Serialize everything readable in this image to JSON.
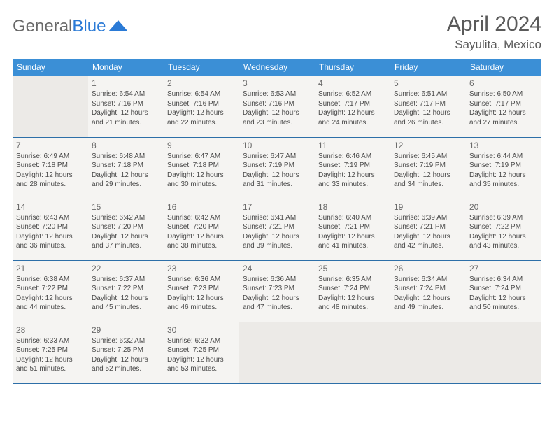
{
  "brand": {
    "part1": "General",
    "part2": "Blue"
  },
  "title": "April 2024",
  "location": "Sayulita, Mexico",
  "colors": {
    "header_bg": "#3b8fd6",
    "header_fg": "#ffffff",
    "cell_bg": "#f5f4f2",
    "empty_bg": "#eceae7",
    "rule": "#2d6fa8",
    "text": "#4a4a4a",
    "logo_gray": "#6a6a6a",
    "logo_blue": "#2a7ad6"
  },
  "day_headers": [
    "Sunday",
    "Monday",
    "Tuesday",
    "Wednesday",
    "Thursday",
    "Friday",
    "Saturday"
  ],
  "start_offset": 1,
  "days": [
    {
      "n": 1,
      "sr": "6:54 AM",
      "ss": "7:16 PM",
      "dl": "12 hours and 21 minutes."
    },
    {
      "n": 2,
      "sr": "6:54 AM",
      "ss": "7:16 PM",
      "dl": "12 hours and 22 minutes."
    },
    {
      "n": 3,
      "sr": "6:53 AM",
      "ss": "7:16 PM",
      "dl": "12 hours and 23 minutes."
    },
    {
      "n": 4,
      "sr": "6:52 AM",
      "ss": "7:17 PM",
      "dl": "12 hours and 24 minutes."
    },
    {
      "n": 5,
      "sr": "6:51 AM",
      "ss": "7:17 PM",
      "dl": "12 hours and 26 minutes."
    },
    {
      "n": 6,
      "sr": "6:50 AM",
      "ss": "7:17 PM",
      "dl": "12 hours and 27 minutes."
    },
    {
      "n": 7,
      "sr": "6:49 AM",
      "ss": "7:18 PM",
      "dl": "12 hours and 28 minutes."
    },
    {
      "n": 8,
      "sr": "6:48 AM",
      "ss": "7:18 PM",
      "dl": "12 hours and 29 minutes."
    },
    {
      "n": 9,
      "sr": "6:47 AM",
      "ss": "7:18 PM",
      "dl": "12 hours and 30 minutes."
    },
    {
      "n": 10,
      "sr": "6:47 AM",
      "ss": "7:19 PM",
      "dl": "12 hours and 31 minutes."
    },
    {
      "n": 11,
      "sr": "6:46 AM",
      "ss": "7:19 PM",
      "dl": "12 hours and 33 minutes."
    },
    {
      "n": 12,
      "sr": "6:45 AM",
      "ss": "7:19 PM",
      "dl": "12 hours and 34 minutes."
    },
    {
      "n": 13,
      "sr": "6:44 AM",
      "ss": "7:19 PM",
      "dl": "12 hours and 35 minutes."
    },
    {
      "n": 14,
      "sr": "6:43 AM",
      "ss": "7:20 PM",
      "dl": "12 hours and 36 minutes."
    },
    {
      "n": 15,
      "sr": "6:42 AM",
      "ss": "7:20 PM",
      "dl": "12 hours and 37 minutes."
    },
    {
      "n": 16,
      "sr": "6:42 AM",
      "ss": "7:20 PM",
      "dl": "12 hours and 38 minutes."
    },
    {
      "n": 17,
      "sr": "6:41 AM",
      "ss": "7:21 PM",
      "dl": "12 hours and 39 minutes."
    },
    {
      "n": 18,
      "sr": "6:40 AM",
      "ss": "7:21 PM",
      "dl": "12 hours and 41 minutes."
    },
    {
      "n": 19,
      "sr": "6:39 AM",
      "ss": "7:21 PM",
      "dl": "12 hours and 42 minutes."
    },
    {
      "n": 20,
      "sr": "6:39 AM",
      "ss": "7:22 PM",
      "dl": "12 hours and 43 minutes."
    },
    {
      "n": 21,
      "sr": "6:38 AM",
      "ss": "7:22 PM",
      "dl": "12 hours and 44 minutes."
    },
    {
      "n": 22,
      "sr": "6:37 AM",
      "ss": "7:22 PM",
      "dl": "12 hours and 45 minutes."
    },
    {
      "n": 23,
      "sr": "6:36 AM",
      "ss": "7:23 PM",
      "dl": "12 hours and 46 minutes."
    },
    {
      "n": 24,
      "sr": "6:36 AM",
      "ss": "7:23 PM",
      "dl": "12 hours and 47 minutes."
    },
    {
      "n": 25,
      "sr": "6:35 AM",
      "ss": "7:24 PM",
      "dl": "12 hours and 48 minutes."
    },
    {
      "n": 26,
      "sr": "6:34 AM",
      "ss": "7:24 PM",
      "dl": "12 hours and 49 minutes."
    },
    {
      "n": 27,
      "sr": "6:34 AM",
      "ss": "7:24 PM",
      "dl": "12 hours and 50 minutes."
    },
    {
      "n": 28,
      "sr": "6:33 AM",
      "ss": "7:25 PM",
      "dl": "12 hours and 51 minutes."
    },
    {
      "n": 29,
      "sr": "6:32 AM",
      "ss": "7:25 PM",
      "dl": "12 hours and 52 minutes."
    },
    {
      "n": 30,
      "sr": "6:32 AM",
      "ss": "7:25 PM",
      "dl": "12 hours and 53 minutes."
    }
  ],
  "labels": {
    "sunrise": "Sunrise:",
    "sunset": "Sunset:",
    "daylight": "Daylight:"
  }
}
